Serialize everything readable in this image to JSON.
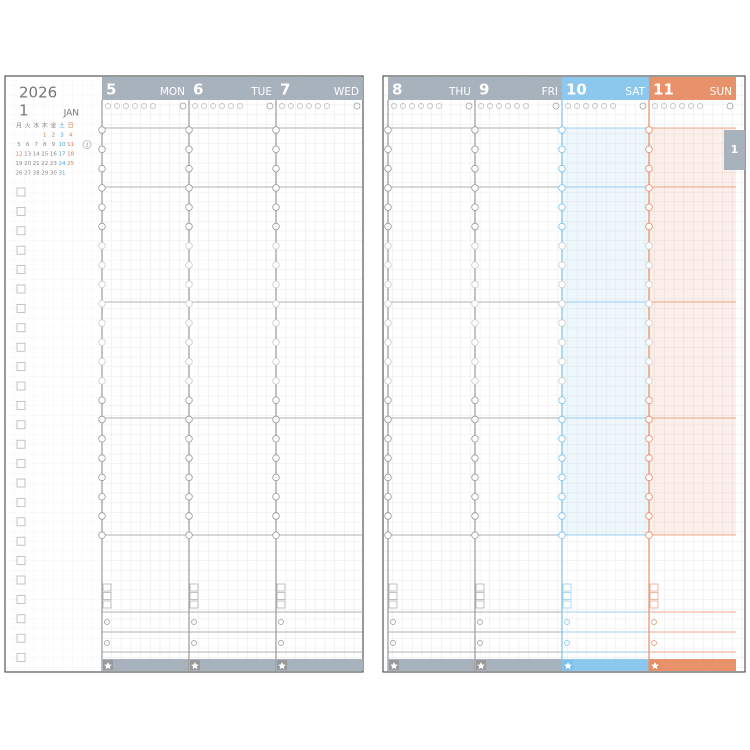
{
  "header": {
    "year": "2026",
    "month_number": "1",
    "month_name": "JAN"
  },
  "mini_calendar": {
    "weekdays": [
      "月",
      "火",
      "水",
      "木",
      "金",
      "土",
      "日"
    ],
    "weeks": [
      [
        null,
        null,
        null,
        1,
        2,
        3,
        4
      ],
      [
        5,
        6,
        7,
        8,
        9,
        10,
        11
      ],
      [
        12,
        13,
        14,
        15,
        16,
        17,
        18
      ],
      [
        19,
        20,
        21,
        22,
        23,
        24,
        25
      ],
      [
        26,
        27,
        28,
        29,
        30,
        31,
        null
      ]
    ],
    "holidays": [
      1,
      12
    ],
    "next_month": "2"
  },
  "days": [
    {
      "date": "5",
      "weekday": "MON"
    },
    {
      "date": "6",
      "weekday": "TUE"
    },
    {
      "date": "7",
      "weekday": "WED"
    },
    {
      "date": "8",
      "weekday": "THU"
    },
    {
      "date": "9",
      "weekday": "FRI"
    },
    {
      "date": "10",
      "weekday": "SAT"
    },
    {
      "date": "11",
      "weekday": "SUN"
    }
  ],
  "tab": "1"
}
